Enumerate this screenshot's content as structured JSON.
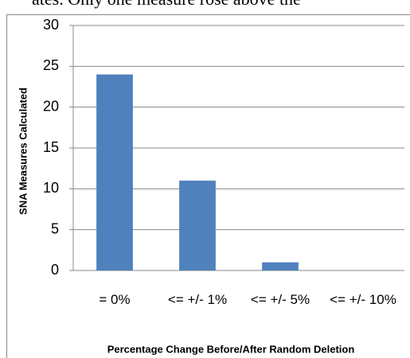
{
  "context_text": "ates. Only one measure rose above the",
  "chart_data": {
    "type": "bar",
    "categories": [
      "= 0%",
      "<= +/- 1%",
      "<= +/- 5%",
      "<= +/- 10%"
    ],
    "values": [
      24,
      11,
      1,
      0
    ],
    "color": "#4f81bd",
    "ylim": [
      0,
      30
    ],
    "yticks": [
      0,
      5,
      10,
      15,
      20,
      25,
      30
    ],
    "grid": true,
    "ylabel": "SNA Measures Calculated",
    "xlabel": "Percentage Change Before/After Random Deletion"
  }
}
